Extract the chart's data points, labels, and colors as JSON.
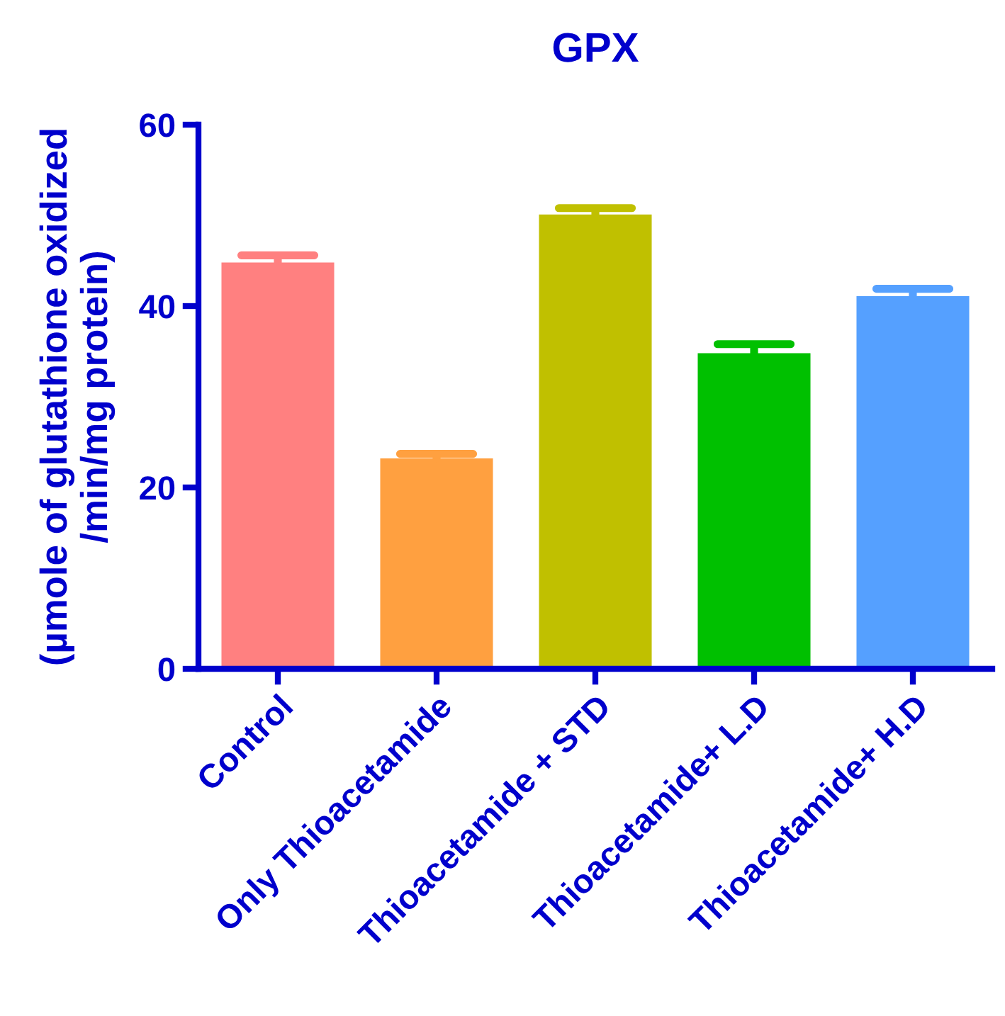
{
  "chart_data": {
    "type": "bar",
    "title": "GPX",
    "ylabel": "(µmole of glutathione oxidized\n/min/mg protein)",
    "categories": [
      "Control",
      "Only Thioacetamide",
      "Thioacetamide + STD",
      "Thioacetamide+ L.D",
      "Thioacetamide+ H.D"
    ],
    "values": [
      44.8,
      23.2,
      50.1,
      34.8,
      41.1
    ],
    "errors": [
      [
        44.8,
        45.6
      ],
      [
        23.2,
        23.7
      ],
      [
        50.1,
        50.8
      ],
      [
        34.8,
        35.8
      ],
      [
        41.1,
        41.9
      ]
    ],
    "colors": [
      "#ff8080",
      "#ffa040",
      "#c0c000",
      "#00c000",
      "#55a0ff"
    ],
    "ylim": [
      0,
      60
    ],
    "yticks": [
      0,
      20,
      40,
      60
    ],
    "grid": false,
    "legend": false
  }
}
